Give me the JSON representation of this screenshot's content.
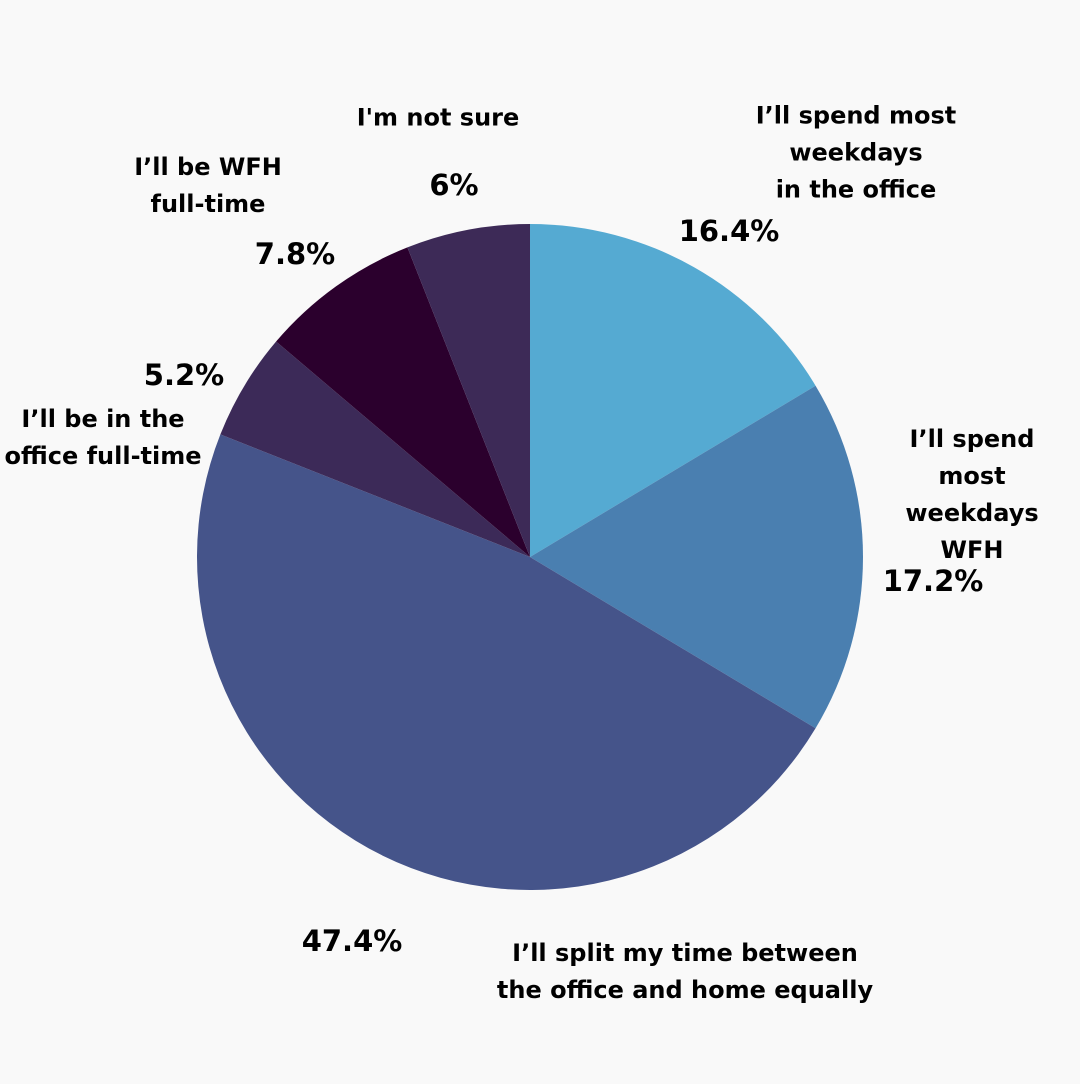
{
  "chart_data": {
    "type": "pie",
    "start_angle": "12 o'clock",
    "direction": "clockwise",
    "slices": [
      {
        "label": "I’ll spend most weekdays\nin the office",
        "value": 16.4,
        "value_label": "16.4%",
        "color": "#55aad2"
      },
      {
        "label": "I’ll spend most\nweekdays WFH",
        "value": 17.2,
        "value_label": "17.2%",
        "color": "#4a7fb0"
      },
      {
        "label": "I’ll split my time between\nthe office and home equally",
        "value": 47.4,
        "value_label": "47.4%",
        "color": "#45548a"
      },
      {
        "label": "I’ll be in the\noffice full-time",
        "value": 5.2,
        "value_label": "5.2%",
        "color": "#3c2a58"
      },
      {
        "label": "I’ll be WFH\nfull-time",
        "value": 7.8,
        "value_label": "7.8%",
        "color": "#2b002d"
      },
      {
        "label": "I'm not sure",
        "value": 6,
        "value_label": "6%",
        "color": "#3d2a57"
      }
    ]
  }
}
